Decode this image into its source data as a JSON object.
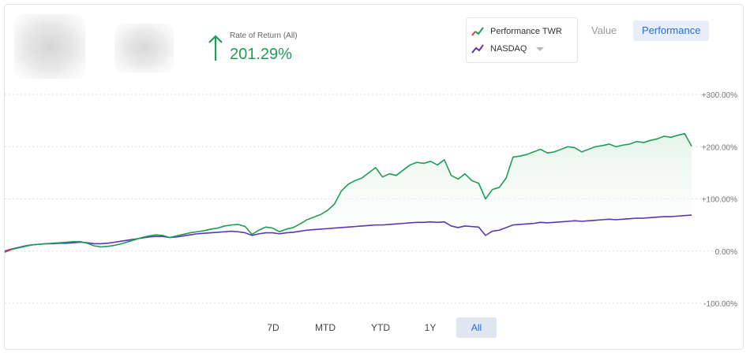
{
  "summary": {
    "ror_label": "Rate of Return (All)",
    "ror_value": "201.29%",
    "ror_direction": "up",
    "accent_color": "#1f9d55"
  },
  "legend": {
    "items": [
      {
        "label": "Performance TWR",
        "icon": "red-green-line-icon"
      },
      {
        "label": "NASDAQ",
        "icon": "purple-line-icon"
      }
    ]
  },
  "view_toggle": {
    "value_label": "Value",
    "performance_label": "Performance",
    "selected": "Performance"
  },
  "range_buttons": [
    {
      "label": "7D"
    },
    {
      "label": "MTD"
    },
    {
      "label": "YTD"
    },
    {
      "label": "1Y"
    },
    {
      "label": "All",
      "active": true
    }
  ],
  "chart_data": {
    "type": "line",
    "title": "",
    "xlabel": "",
    "ylabel": "",
    "ylim": [
      -100,
      300
    ],
    "y_ticks": [
      {
        "value": 300,
        "label": "+300.00%"
      },
      {
        "value": 200,
        "label": "+200.00%"
      },
      {
        "value": 100,
        "label": "+100.00%"
      },
      {
        "value": 0,
        "label": "0.00%"
      },
      {
        "value": -100,
        "label": "-100.00%"
      }
    ],
    "grid": true,
    "colors": {
      "performance": "#1f9d55",
      "performance_fill": "#e3f3e8",
      "nasdaq": "#5b35b5",
      "start_segment": "#d93b52"
    },
    "series": [
      {
        "name": "Performance TWR",
        "x": [
          0,
          1,
          2,
          3,
          4,
          5,
          6,
          7,
          8,
          9,
          10,
          11,
          12,
          13,
          14,
          15,
          16,
          17,
          18,
          19,
          20,
          21,
          22,
          23,
          24,
          25,
          26,
          27,
          28,
          29,
          30,
          31,
          32,
          33,
          34,
          35,
          36,
          37,
          38,
          39,
          40,
          41,
          42,
          43,
          44,
          45,
          46,
          47,
          48,
          49,
          50,
          51,
          52,
          53,
          54,
          55,
          56,
          57,
          58,
          59,
          60,
          61,
          62,
          63,
          64,
          65,
          66,
          67,
          68,
          69,
          70,
          71,
          72,
          73,
          74,
          75,
          76,
          77,
          78,
          79,
          80,
          81,
          82,
          83,
          84,
          85,
          86,
          87,
          88,
          89,
          90,
          91,
          92,
          93,
          94,
          95,
          96,
          97,
          98,
          99,
          100
        ],
        "values": [
          -2,
          3,
          6,
          9,
          12,
          13,
          14,
          15,
          16,
          17,
          18,
          18,
          15,
          10,
          8,
          9,
          11,
          14,
          18,
          22,
          26,
          29,
          31,
          30,
          26,
          29,
          32,
          35,
          37,
          39,
          42,
          44,
          48,
          50,
          51,
          47,
          32,
          40,
          46,
          44,
          37,
          42,
          45,
          52,
          60,
          65,
          70,
          78,
          90,
          115,
          128,
          135,
          140,
          150,
          160,
          142,
          148,
          145,
          155,
          165,
          170,
          168,
          172,
          165,
          175,
          145,
          138,
          148,
          135,
          130,
          100,
          118,
          122,
          140,
          180,
          182,
          185,
          190,
          195,
          188,
          190,
          195,
          200,
          198,
          190,
          195,
          200,
          202,
          205,
          200,
          203,
          205,
          210,
          208,
          212,
          215,
          220,
          218,
          222,
          225,
          201
        ]
      },
      {
        "name": "NASDAQ",
        "x": [
          0,
          1,
          2,
          3,
          4,
          5,
          6,
          7,
          8,
          9,
          10,
          11,
          12,
          13,
          14,
          15,
          16,
          17,
          18,
          19,
          20,
          21,
          22,
          23,
          24,
          25,
          26,
          27,
          28,
          29,
          30,
          31,
          32,
          33,
          34,
          35,
          36,
          37,
          38,
          39,
          40,
          41,
          42,
          43,
          44,
          45,
          46,
          47,
          48,
          49,
          50,
          51,
          52,
          53,
          54,
          55,
          56,
          57,
          58,
          59,
          60,
          61,
          62,
          63,
          64,
          65,
          66,
          67,
          68,
          69,
          70,
          71,
          72,
          73,
          74,
          75,
          76,
          77,
          78,
          79,
          80,
          81,
          82,
          83,
          84,
          85,
          86,
          87,
          88,
          89,
          90,
          91,
          92,
          93,
          94,
          95,
          96,
          97,
          98,
          99,
          100
        ],
        "values": [
          0,
          4,
          7,
          10,
          12,
          13,
          14,
          14,
          15,
          15,
          16,
          17,
          16,
          14,
          14,
          15,
          17,
          19,
          21,
          23,
          25,
          27,
          28,
          28,
          26,
          27,
          29,
          31,
          33,
          34,
          35,
          36,
          37,
          38,
          37,
          35,
          30,
          33,
          35,
          35,
          33,
          35,
          36,
          38,
          40,
          41,
          42,
          43,
          44,
          45,
          46,
          47,
          48,
          49,
          50,
          50,
          51,
          52,
          53,
          54,
          55,
          55,
          56,
          55,
          56,
          48,
          45,
          48,
          47,
          46,
          30,
          38,
          40,
          45,
          50,
          51,
          52,
          53,
          55,
          54,
          55,
          56,
          57,
          58,
          57,
          58,
          59,
          60,
          61,
          60,
          61,
          62,
          63,
          63,
          64,
          65,
          66,
          66,
          67,
          68,
          69
        ]
      }
    ]
  }
}
